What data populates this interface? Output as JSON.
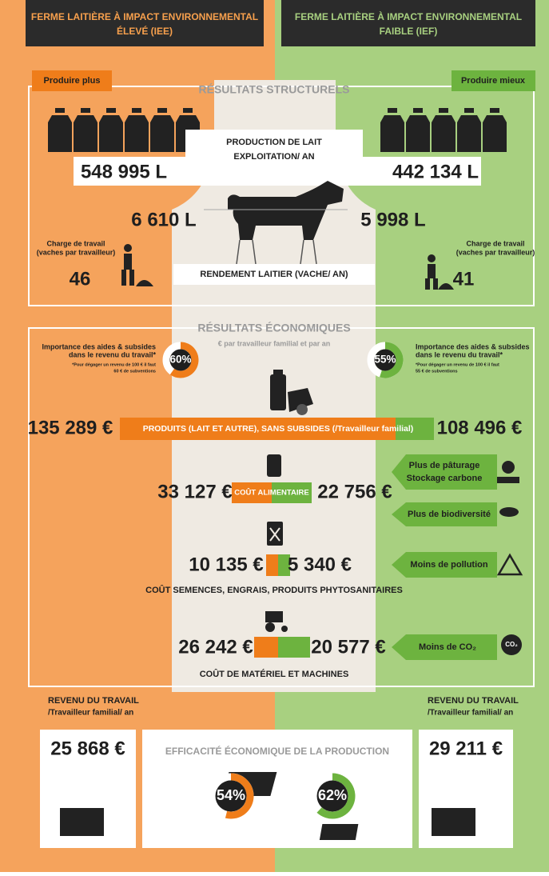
{
  "header": {
    "left_title": [
      "FERME LAITIÈRE À IMPACT ENVIRONNEMENTAL",
      "ÉLEVÉ (IEE)"
    ],
    "right_title": [
      "FERME LAITIÈRE À IMPACT ENVIRONNEMENTAL",
      "FAIBLE (IEF)"
    ]
  },
  "tags": {
    "left": "Produire plus",
    "right": "Produire mieux"
  },
  "structural": {
    "title": "RÉSULTATS STRUCTURELS",
    "production_label": [
      "PRODUCTION DE LAIT",
      "EXPLOITATION/ AN"
    ],
    "production_left": "548 995 L",
    "production_right": "442 134 L",
    "yield_left": "6 610 L",
    "yield_right": "5 998 L",
    "yield_label": "RENDEMENT LAITIER (VACHE/ AN)",
    "workload_label": [
      "Charge de travail",
      "(vaches par travailleur)"
    ],
    "workload_left": "46",
    "workload_right": "41"
  },
  "economic": {
    "title": "RÉSULTATS ÉCONOMIQUES",
    "subtitle": "€ par travailleur familial et par an",
    "aids_label": [
      "Importance des aides & subsides",
      "dans le revenu du travail*"
    ],
    "aids_note_left": [
      "*Pour dégager un revenu de 100 € il faut",
      "60 € de subventions"
    ],
    "aids_note_right": [
      "*Pour dégager un revenu de 100 € il faut",
      "55 € de subventions"
    ],
    "aids_left": {
      "value": 60,
      "label": "60%"
    },
    "aids_right": {
      "value": 55,
      "label": "55%"
    },
    "products_label": "PRODUITS (LAIT ET AUTRE), SANS SUBSIDES (/Travailleur familial)",
    "products_left": "135 289 €",
    "products_right": "108 496 €",
    "feed_label": "COÛT ALIMENTAIRE",
    "feed_left": "33 127 €",
    "feed_right": "22 756 €",
    "inputs_left": "10 135 €",
    "inputs_right": "5 340 €",
    "inputs_label": "COÛT SEMENCES, ENGRAIS, PRODUITS PHYTOSANITAIRES",
    "machines_left": "26 242 €",
    "machines_right": "20 577 €",
    "machines_label": "COÛT DE MATÉRIEL ET MACHINES"
  },
  "benefits": {
    "items": [
      [
        "Plus de pâturage",
        "Stockage carbone"
      ],
      [
        "Plus de biodiversité"
      ],
      [
        "Moins de pollution"
      ],
      [
        "Moins de CO₂"
      ]
    ],
    "co2_icon": "CO₂"
  },
  "income": {
    "label": [
      "REVENU DU TRAVAIL",
      "/Travailleur familial/ an"
    ],
    "left": "25 868 €",
    "right": "29 211 €",
    "efficiency_title": "EFFICACITÉ ÉCONOMIQUE DE LA PRODUCTION",
    "efficiency_left": {
      "value": 54,
      "label": "54%"
    },
    "efficiency_right": {
      "value": 62,
      "label": "62%"
    }
  }
}
